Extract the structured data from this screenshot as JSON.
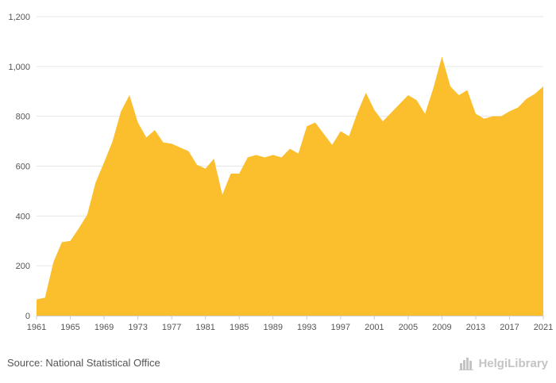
{
  "source_text": "Source: National Statistical Office",
  "logo_text": "HelgiLibrary",
  "logo_icon": "helgi-library-buildings-icon",
  "colors": {
    "area": "#fbbf2e",
    "grid": "#e6e6e6",
    "axis": "#cccccc",
    "text": "#555555"
  },
  "chart_data": {
    "type": "area",
    "title": "",
    "xlabel": "",
    "ylabel": "",
    "grid": true,
    "legend": "none",
    "ylim": [
      0,
      1200
    ],
    "yticks": [
      0,
      200,
      400,
      600,
      800,
      1000,
      1200
    ],
    "ytick_labels": [
      "0",
      "200",
      "400",
      "600",
      "800",
      "1,000",
      "1,200"
    ],
    "xticks": [
      1961,
      1965,
      1969,
      1973,
      1977,
      1981,
      1985,
      1989,
      1993,
      1997,
      2001,
      2005,
      2009,
      2013,
      2017,
      2021
    ],
    "x": [
      1961,
      1962,
      1963,
      1964,
      1965,
      1966,
      1967,
      1968,
      1969,
      1970,
      1971,
      1972,
      1973,
      1974,
      1975,
      1976,
      1977,
      1978,
      1979,
      1980,
      1981,
      1982,
      1983,
      1984,
      1985,
      1986,
      1987,
      1988,
      1989,
      1990,
      1991,
      1992,
      1993,
      1994,
      1995,
      1996,
      1997,
      1998,
      1999,
      2000,
      2001,
      2002,
      2003,
      2004,
      2005,
      2006,
      2007,
      2008,
      2009,
      2010,
      2011,
      2012,
      2013,
      2014,
      2015,
      2016,
      2017,
      2018,
      2019,
      2020,
      2021
    ],
    "series": [
      {
        "values": [
          65,
          72,
          215,
          295,
          300,
          350,
          405,
          535,
          615,
          700,
          820,
          885,
          775,
          715,
          745,
          695,
          690,
          675,
          660,
          605,
          590,
          630,
          485,
          570,
          570,
          635,
          645,
          635,
          645,
          635,
          670,
          650,
          760,
          775,
          730,
          685,
          740,
          720,
          815,
          895,
          825,
          780,
          815,
          850,
          885,
          865,
          810,
          915,
          1040,
          920,
          885,
          905,
          810,
          790,
          800,
          800,
          820,
          835,
          870,
          890,
          920
        ]
      }
    ]
  }
}
